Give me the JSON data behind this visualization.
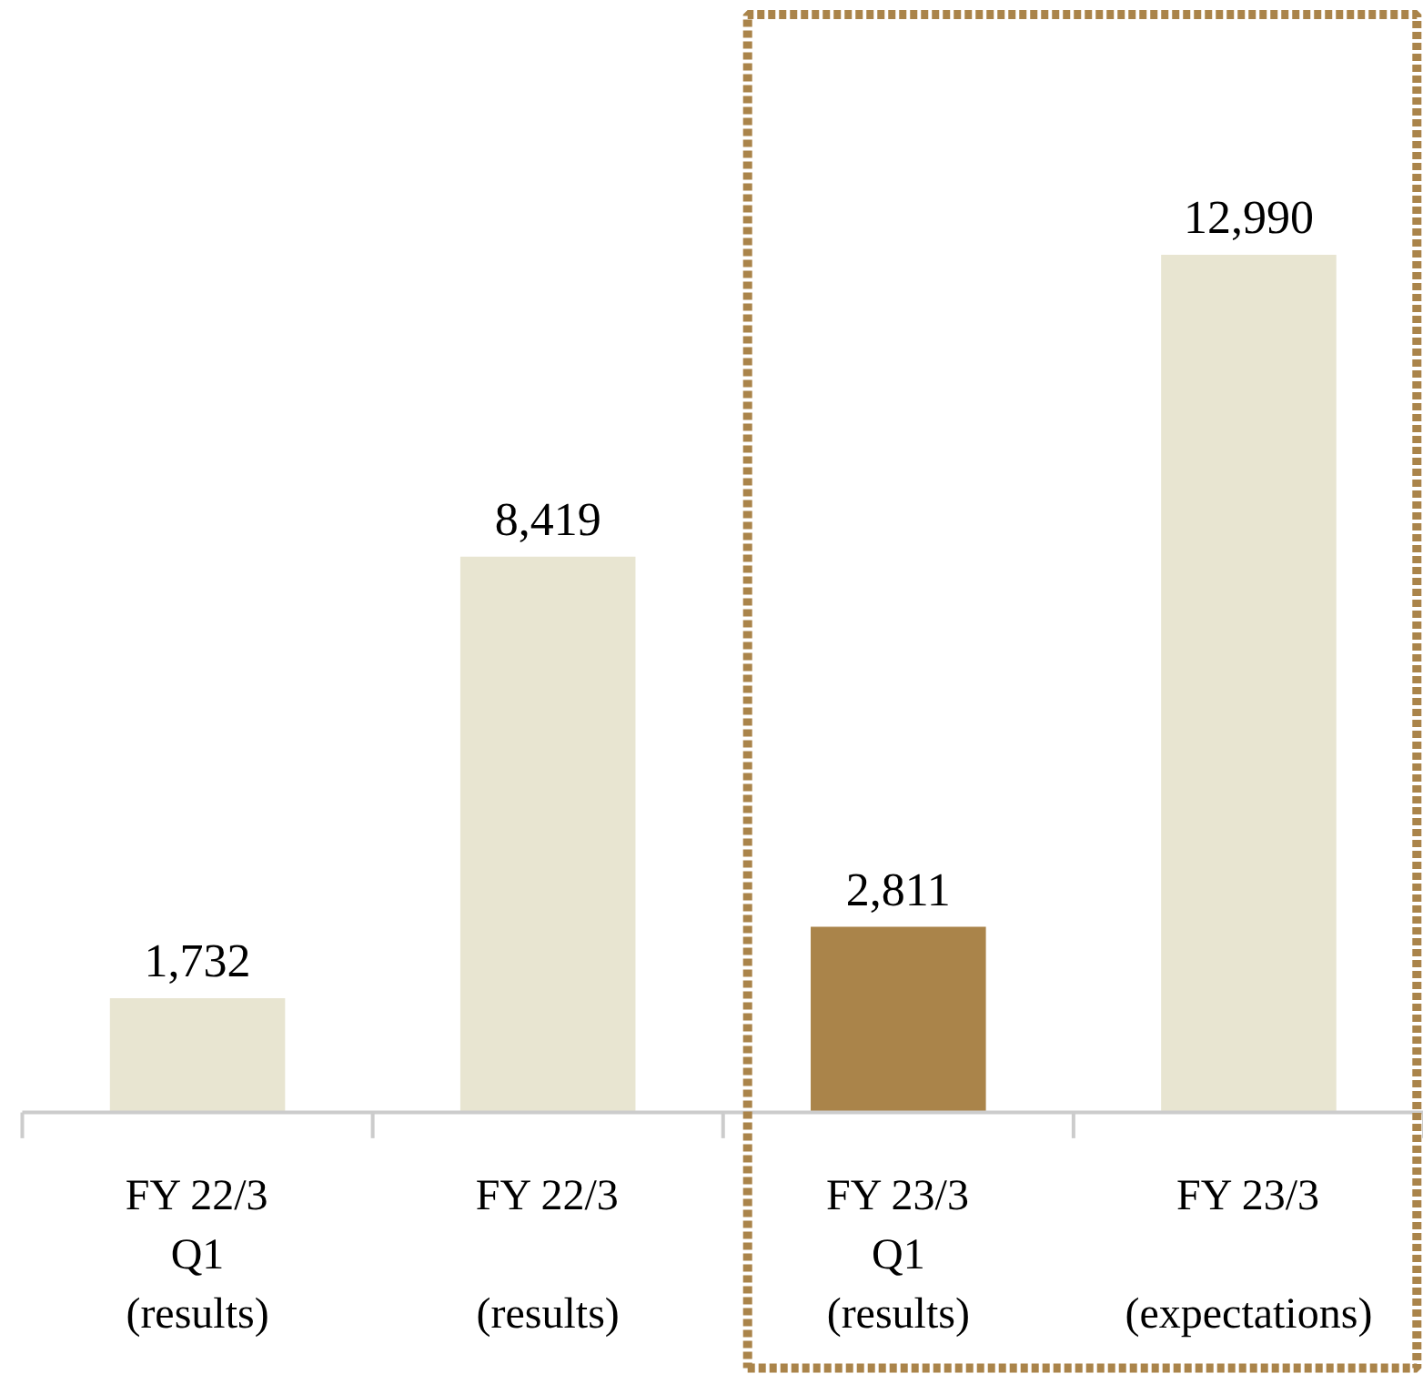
{
  "chart_data": {
    "type": "bar",
    "categories": [
      "FY 22/3\nQ1\n(results)",
      "FY 22/3\n\n(results)",
      "FY 23/3\nQ1\n(results)",
      "FY 23/3\n\n(expectations)"
    ],
    "values": [
      1732,
      8419,
      2811,
      12990
    ],
    "value_labels": [
      "1,732",
      "8,419",
      "2,811",
      "12,990"
    ],
    "colors": [
      "#e8e5d1",
      "#e8e5d1",
      "#aa844a",
      "#e8e5d1"
    ]
  }
}
